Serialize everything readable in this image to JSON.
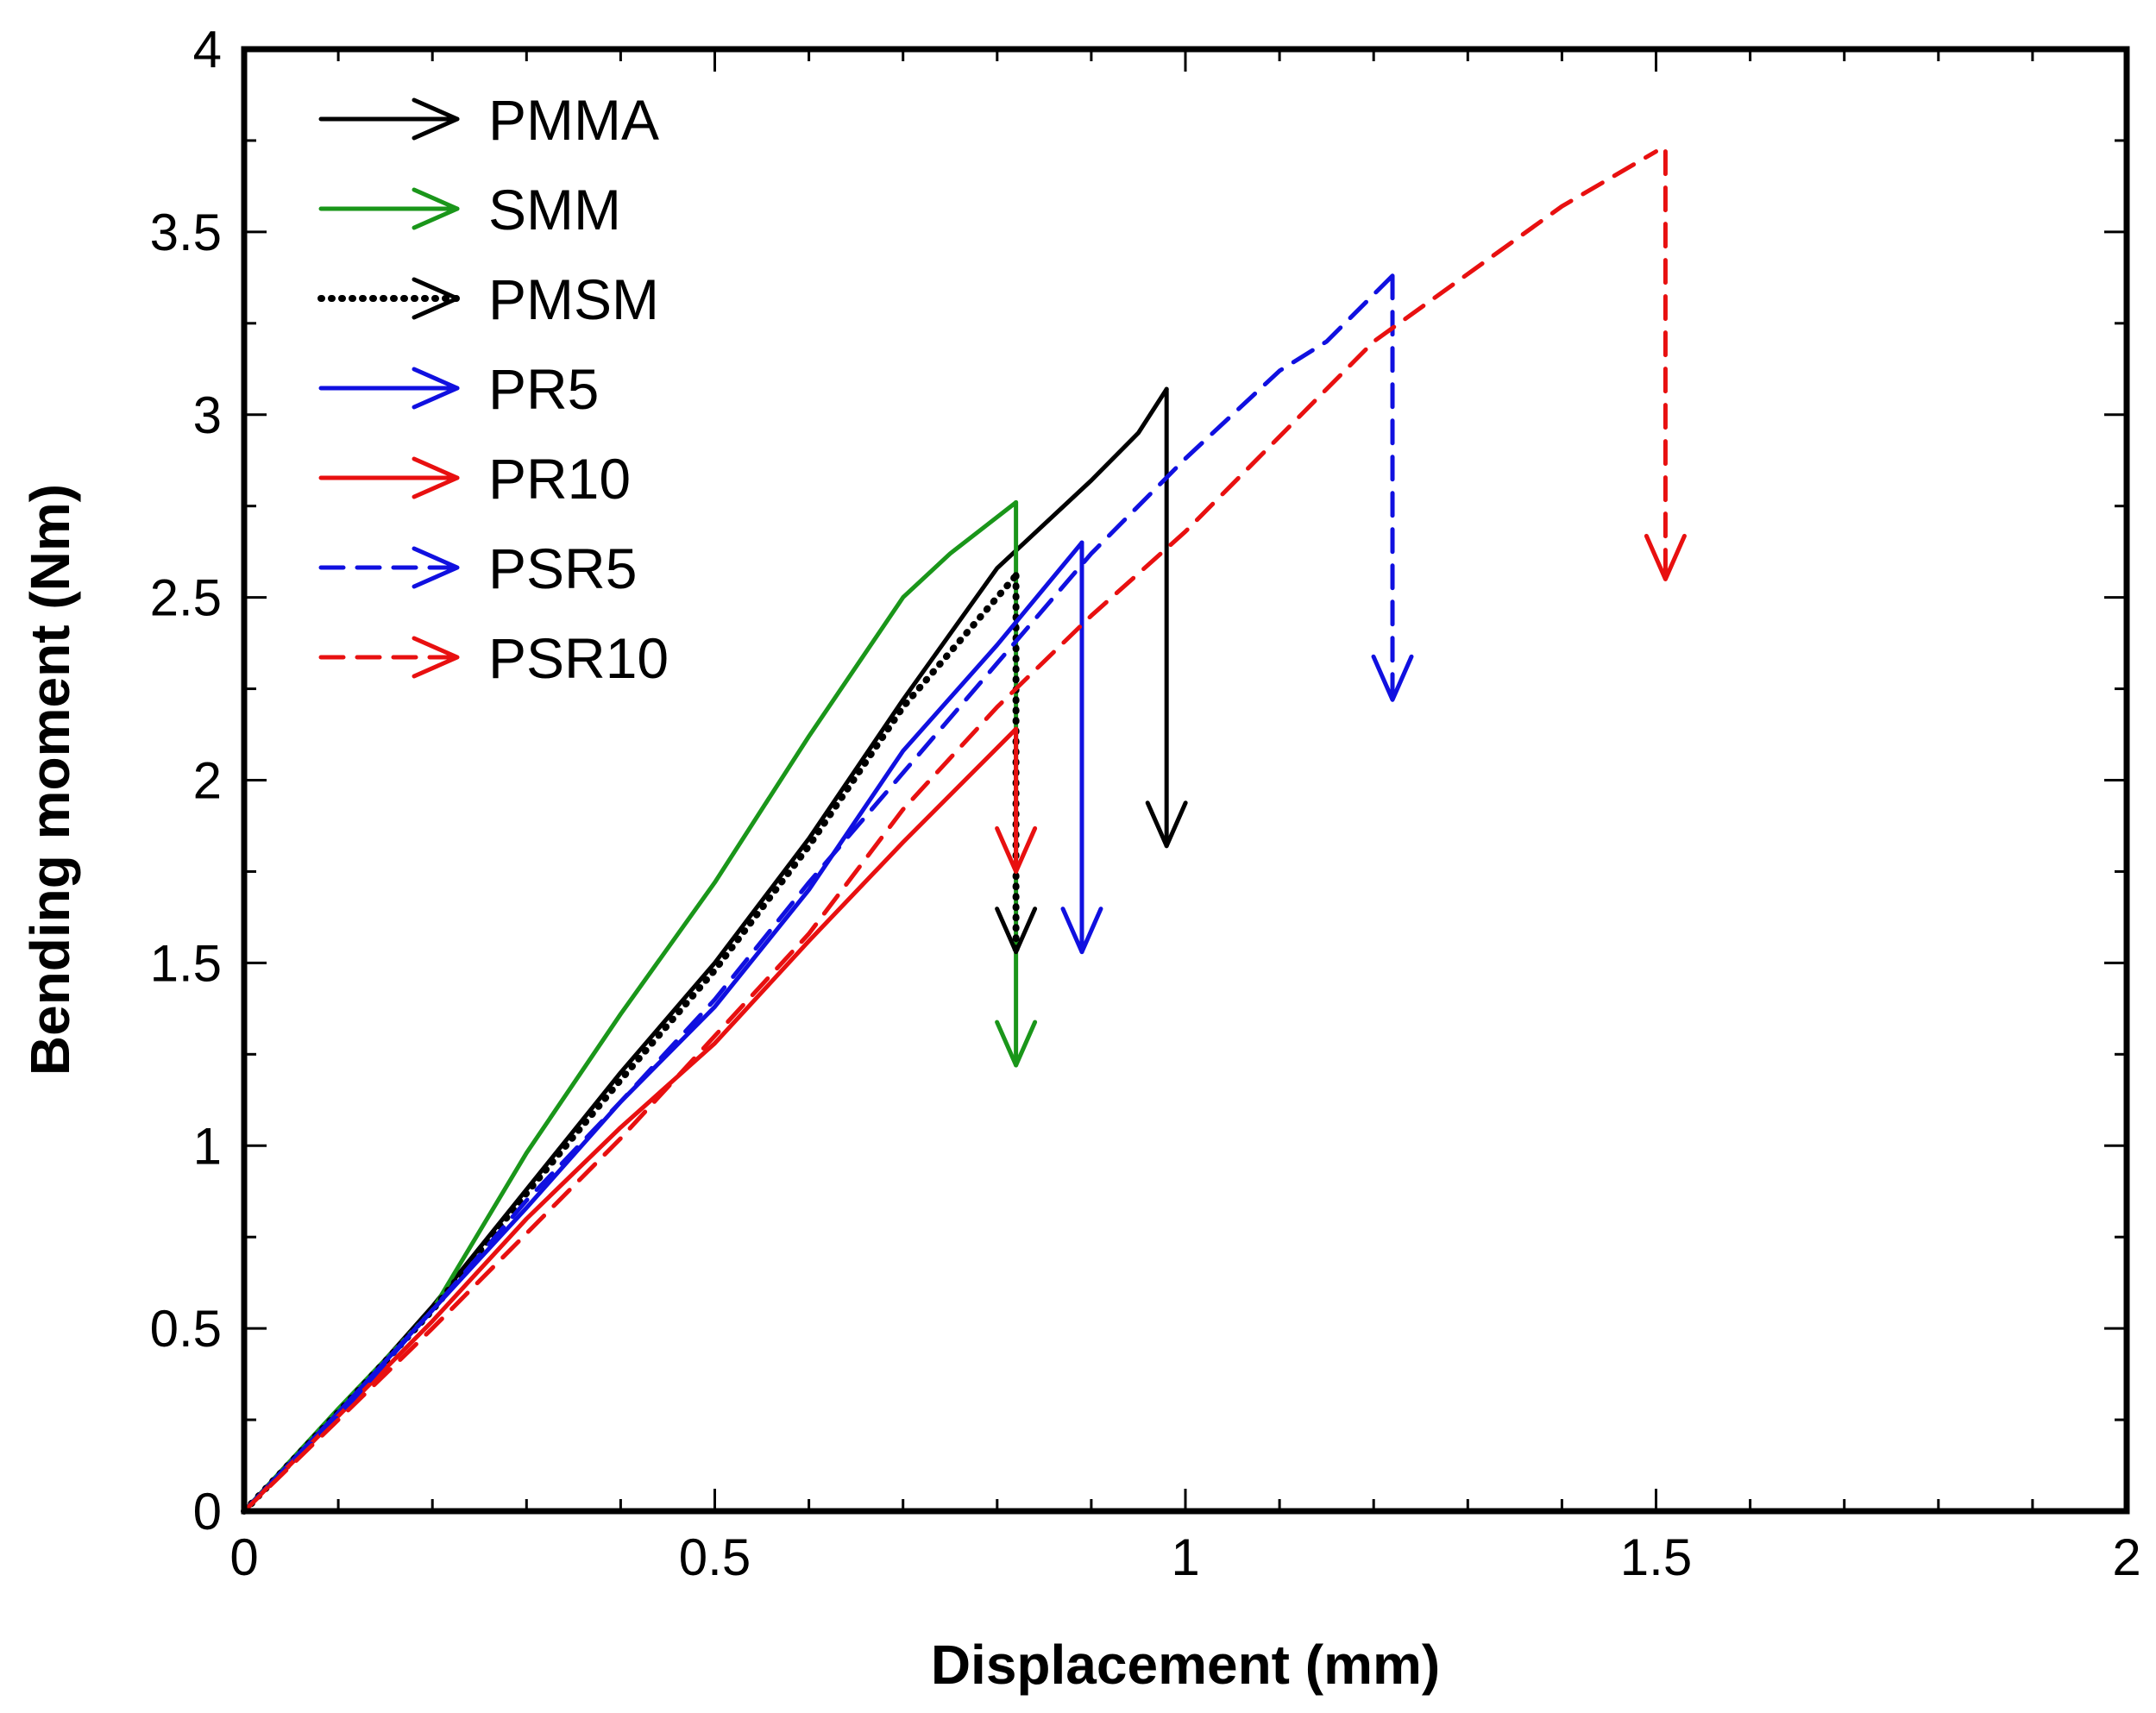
{
  "chart_data": {
    "type": "line",
    "title": "",
    "xlabel": "Displacement (mm)",
    "ylabel": "Bending moment (Nm)",
    "xlim": [
      0,
      2
    ],
    "ylim": [
      0,
      4
    ],
    "xticks": [
      0,
      0.5,
      1,
      1.5,
      2
    ],
    "xtick_labels": [
      "0",
      "0.5",
      "1",
      "1.5",
      "2"
    ],
    "yticks": [
      0,
      0.5,
      1,
      1.5,
      2,
      2.5,
      3,
      3.5,
      4
    ],
    "ytick_labels": [
      "0",
      "0.5",
      "1",
      "1.5",
      "2",
      "2.5",
      "3",
      "3.5",
      "4"
    ],
    "x_minor_step": 0.1,
    "y_minor_step": 0.25,
    "legend_position": "top-left",
    "series": [
      {
        "name": "PMMA",
        "color": "#000000",
        "style": "solid",
        "x": [
          0,
          0.1,
          0.2,
          0.3,
          0.4,
          0.5,
          0.6,
          0.7,
          0.8,
          0.9,
          0.95,
          0.98
        ],
        "y": [
          0,
          0.27,
          0.56,
          0.88,
          1.2,
          1.5,
          1.84,
          2.22,
          2.58,
          2.82,
          2.95,
          3.07
        ],
        "drop": {
          "x": 0.98,
          "y_from": 3.07,
          "y_to": 1.82
        }
      },
      {
        "name": "SMM",
        "color": "#1a961a",
        "style": "solid",
        "x": [
          0,
          0.1,
          0.2,
          0.3,
          0.4,
          0.5,
          0.6,
          0.7,
          0.75,
          0.82
        ],
        "y": [
          0,
          0.28,
          0.55,
          0.98,
          1.36,
          1.72,
          2.12,
          2.5,
          2.62,
          2.76
        ],
        "drop": {
          "x": 0.82,
          "y_from": 2.76,
          "y_to": 1.22
        }
      },
      {
        "name": "PMSM",
        "color": "#000000",
        "style": "dotted",
        "x": [
          0,
          0.1,
          0.2,
          0.3,
          0.4,
          0.5,
          0.6,
          0.7,
          0.82
        ],
        "y": [
          0,
          0.27,
          0.55,
          0.87,
          1.18,
          1.48,
          1.82,
          2.2,
          2.56
        ],
        "drop": {
          "x": 0.82,
          "y_from": 2.56,
          "y_to": 1.53
        }
      },
      {
        "name": "PR5",
        "color": "#1010e0",
        "style": "solid",
        "x": [
          0,
          0.1,
          0.2,
          0.3,
          0.4,
          0.5,
          0.6,
          0.7,
          0.8,
          0.89
        ],
        "y": [
          0,
          0.27,
          0.55,
          0.83,
          1.12,
          1.38,
          1.7,
          2.08,
          2.37,
          2.65
        ],
        "drop": {
          "x": 0.89,
          "y_from": 2.65,
          "y_to": 1.53
        }
      },
      {
        "name": "PR10",
        "color": "#e81010",
        "style": "solid",
        "x": [
          0,
          0.1,
          0.2,
          0.3,
          0.4,
          0.5,
          0.6,
          0.7,
          0.82
        ],
        "y": [
          0,
          0.26,
          0.52,
          0.8,
          1.05,
          1.28,
          1.56,
          1.83,
          2.14
        ],
        "drop": {
          "x": 0.82,
          "y_from": 2.14,
          "y_to": 1.75
        }
      },
      {
        "name": "PSR5",
        "color": "#1010e0",
        "style": "dashed",
        "x": [
          0,
          0.1,
          0.2,
          0.3,
          0.4,
          0.5,
          0.6,
          0.7,
          0.8,
          0.9,
          1.0,
          1.1,
          1.15,
          1.22
        ],
        "y": [
          0,
          0.26,
          0.55,
          0.85,
          1.12,
          1.4,
          1.72,
          2.02,
          2.32,
          2.62,
          2.88,
          3.12,
          3.2,
          3.38
        ],
        "drop": {
          "x": 1.22,
          "y_from": 3.38,
          "y_to": 2.22
        }
      },
      {
        "name": "PSR10",
        "color": "#e81010",
        "style": "dashed",
        "x": [
          0,
          0.1,
          0.2,
          0.3,
          0.4,
          0.5,
          0.6,
          0.7,
          0.8,
          0.9,
          1.0,
          1.2,
          1.4,
          1.5
        ],
        "y": [
          0,
          0.25,
          0.5,
          0.76,
          1.02,
          1.3,
          1.58,
          1.92,
          2.2,
          2.45,
          2.68,
          3.2,
          3.57,
          3.72
        ],
        "drop": {
          "x": 1.51,
          "y_from": 3.72,
          "y_to": 2.55
        }
      }
    ]
  }
}
